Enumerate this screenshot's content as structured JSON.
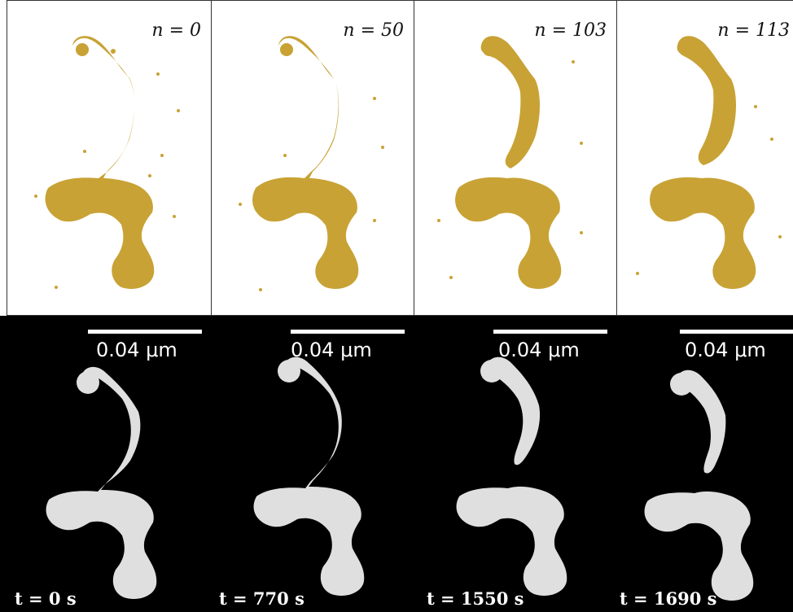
{
  "colors": {
    "simulation_fill": "#c8a235",
    "background_top": "#ffffff",
    "background_bottom": "#000000",
    "experiment_fill": "#f2f2f2"
  },
  "panels": [
    {
      "n_label": "n = 0",
      "time_label": "t = 0 s",
      "scale_label": "0.04 μm"
    },
    {
      "n_label": "n = 50",
      "time_label": "t = 770 s",
      "scale_label": "0.04 μm"
    },
    {
      "n_label": "n = 103",
      "time_label": "t = 1550 s",
      "scale_label": "0.04 μm"
    },
    {
      "n_label": "n = 113",
      "time_label": "t = 1690 s",
      "scale_label": "0.04 μm"
    }
  ]
}
